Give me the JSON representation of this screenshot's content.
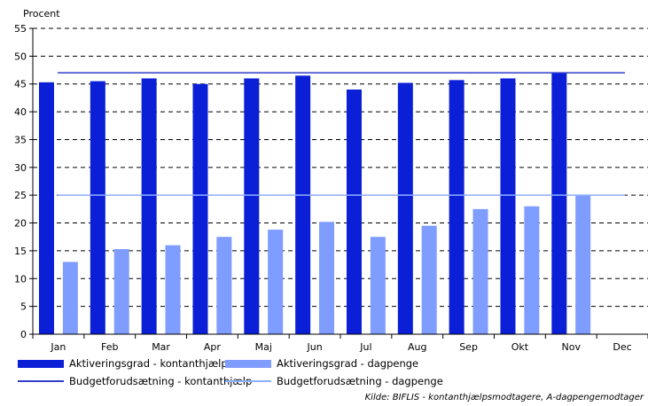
{
  "chart_data": {
    "type": "bar",
    "ylabel": "Procent",
    "ylim": [
      0,
      55
    ],
    "yticks": [
      0,
      5,
      10,
      15,
      20,
      25,
      30,
      35,
      40,
      45,
      50,
      55
    ],
    "categories": [
      "Jan",
      "Feb",
      "Mar",
      "Apr",
      "Maj",
      "Jun",
      "Jul",
      "Aug",
      "Sep",
      "Okt",
      "Nov",
      "Dec"
    ],
    "grid": true,
    "series": [
      {
        "name": "Aktiveringsgrad - kontanthjælp",
        "kind": "bar",
        "color": "#0a1fd6",
        "values": [
          45.3,
          45.5,
          46.0,
          45.0,
          46.0,
          46.5,
          44.0,
          45.2,
          45.7,
          46.0,
          47.0,
          null
        ]
      },
      {
        "name": "Aktiveringsgrad - dagpenge",
        "kind": "bar",
        "color": "#7f9cff",
        "values": [
          13.0,
          15.3,
          16.0,
          17.5,
          18.8,
          20.2,
          17.5,
          19.5,
          22.5,
          23.0,
          25.0,
          null
        ]
      },
      {
        "name": "Budgetforudsætning - kontanthjælp",
        "kind": "line",
        "color": "#2f3fcc",
        "value": 47
      },
      {
        "name": "Budgetforudsætning - dagpenge",
        "kind": "line",
        "color": "#8fb0ff",
        "value": 25
      }
    ]
  },
  "source_note": "Kilde: BIFLIS - kontanthjælpsmodtagere, A-dagpengemodtager"
}
